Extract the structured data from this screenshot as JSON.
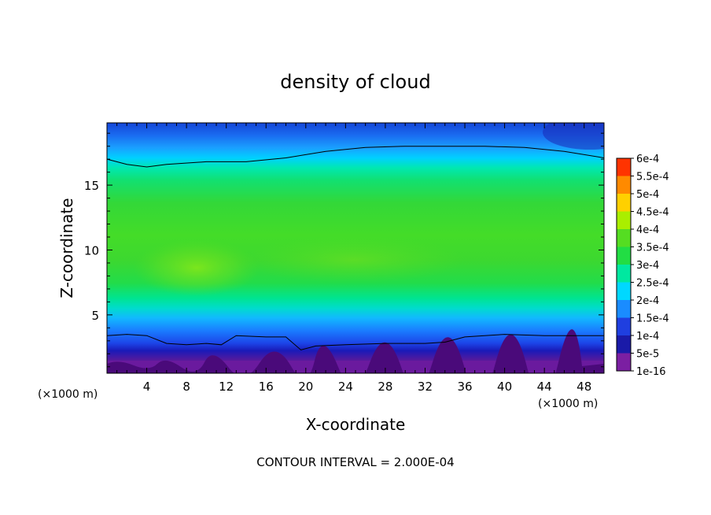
{
  "chart_data": {
    "type": "heatmap",
    "title": "density of cloud",
    "xlabel": "X-coordinate",
    "ylabel": "Z-coordinate",
    "x_unit": "(×1000 m)",
    "y_unit": "(×1000 m)",
    "xlim": [
      0,
      50
    ],
    "ylim": [
      0.5,
      19.8
    ],
    "x_ticks": [
      4,
      8,
      12,
      16,
      20,
      24,
      28,
      32,
      36,
      40,
      44,
      48
    ],
    "y_ticks": [
      5,
      10,
      15
    ],
    "colorbar": {
      "levels": [
        "1e-16",
        "5e-5",
        "1e-4",
        "1.5e-4",
        "2e-4",
        "2.5e-4",
        "3e-4",
        "3.5e-4",
        "4e-4",
        "4.5e-4",
        "5e-4",
        "5.5e-4",
        "6e-4"
      ],
      "colors": [
        "#7b1fa2",
        "#1a1aa8",
        "#1f3fe0",
        "#1a8cff",
        "#00d8ff",
        "#00e8a0",
        "#22dd44",
        "#55dd22",
        "#aaee00",
        "#ffd000",
        "#ff8a00",
        "#ff3300",
        "#ff6e6e"
      ]
    },
    "contour_lines": [
      {
        "level": "2e-4 (upper)",
        "points": [
          [
            0,
            17.0
          ],
          [
            2,
            16.6
          ],
          [
            4,
            16.4
          ],
          [
            6,
            16.6
          ],
          [
            10,
            16.8
          ],
          [
            14,
            16.8
          ],
          [
            18,
            17.1
          ],
          [
            22,
            17.6
          ],
          [
            26,
            17.9
          ],
          [
            30,
            18.0
          ],
          [
            34,
            18.0
          ],
          [
            38,
            18.0
          ],
          [
            42,
            17.9
          ],
          [
            46,
            17.6
          ],
          [
            50,
            17.1
          ]
        ]
      },
      {
        "level": "2e-4 (lower)",
        "points": [
          [
            0,
            3.4
          ],
          [
            2,
            3.5
          ],
          [
            4,
            3.4
          ],
          [
            6,
            2.8
          ],
          [
            8,
            2.7
          ],
          [
            10,
            2.8
          ],
          [
            11.5,
            2.7
          ],
          [
            13,
            3.4
          ],
          [
            16,
            3.3
          ],
          [
            18,
            3.3
          ],
          [
            19.5,
            2.3
          ],
          [
            21,
            2.6
          ],
          [
            24,
            2.7
          ],
          [
            28,
            2.8
          ],
          [
            32,
            2.8
          ],
          [
            34,
            2.9
          ],
          [
            36,
            3.3
          ],
          [
            38,
            3.4
          ],
          [
            40,
            3.5
          ],
          [
            44,
            3.4
          ],
          [
            48,
            3.4
          ],
          [
            50,
            3.4
          ]
        ]
      }
    ]
  },
  "footer": {
    "contour_interval": "CONTOUR INTERVAL = 2.000E-04"
  }
}
